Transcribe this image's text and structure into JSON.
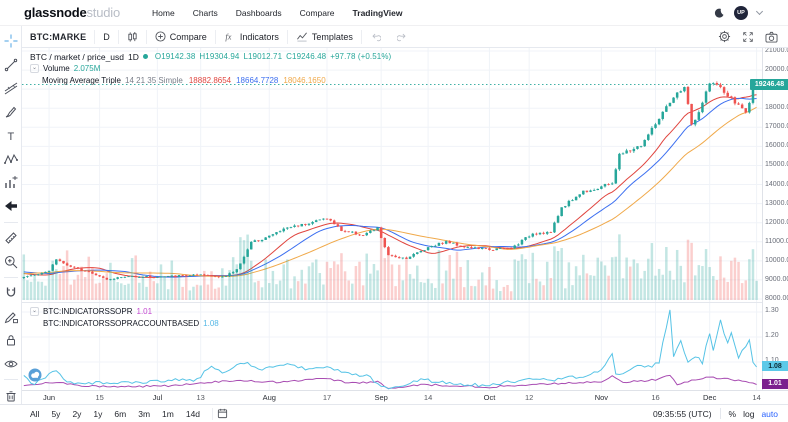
{
  "navbar": {
    "logo_primary": "glassnode",
    "logo_secondary": "studio",
    "items": [
      "Home",
      "Charts",
      "Dashboards",
      "Compare",
      "TradingView"
    ],
    "active_item": "TradingView",
    "avatar_initials": "UP"
  },
  "chart_toolbar": {
    "symbol": "BTC:MARKE",
    "interval": "D",
    "compare_label": "Compare",
    "indicators_label": "Indicators",
    "templates_label": "Templates"
  },
  "legend": {
    "series_title": "BTC / market / price_usd",
    "series_interval": "1D",
    "ohlc": {
      "o": "19142.38",
      "h": "19304.94",
      "l": "19012.71",
      "c": "19246.48",
      "change": "+97.78",
      "change_pct": "(+0.51%)"
    },
    "volume_label": "Volume",
    "volume_value": "2.075M",
    "ma_label": "Moving Average Triple",
    "ma_params": "14 21 35 Simple",
    "ma_values": [
      "18882.8654",
      "18664.7728",
      "18046.1650"
    ]
  },
  "left_toolbar": {
    "tools": [
      "crosshair",
      "trend-line",
      "fib-retracement",
      "brush",
      "text",
      "xabcd-pattern",
      "prediction-measurement",
      "arrow-marker",
      "measure-ruler",
      "zoom-in",
      "magnet",
      "drawing-mode",
      "lock-all",
      "hide-all",
      "remove-drawings"
    ],
    "dividers_after": [
      7,
      9,
      13
    ]
  },
  "price_axis": {
    "ticks": [
      "21000.00",
      "20000.00",
      "19000.00",
      "18000.00",
      "17000.00",
      "16000.00",
      "15000.00",
      "14000.00",
      "13000.00",
      "12000.00",
      "11000.00",
      "10000.00",
      "9000.00",
      "8000.00"
    ],
    "last_price": "19246.48"
  },
  "lower_panel": {
    "series": [
      {
        "label": "BTC:INDICATORSSOPR",
        "value": "1.01"
      },
      {
        "label": "BTC:INDICATORSSOPRACCOUNTBASED",
        "value": "1.08"
      }
    ],
    "ticks": [
      "1.30",
      "1.20",
      "1.10"
    ],
    "tags": [
      {
        "value": "1.08"
      },
      {
        "value": "1.01"
      }
    ]
  },
  "time_axis": {
    "labels": [
      [
        "Jun",
        7,
        "mo"
      ],
      [
        "15",
        21,
        "d"
      ],
      [
        "Jul",
        37,
        "mo"
      ],
      [
        "13",
        49,
        "d"
      ],
      [
        "Aug",
        68,
        "mo"
      ],
      [
        "17",
        84,
        "d"
      ],
      [
        "Sep",
        99,
        "mo"
      ],
      [
        "14",
        112,
        "d"
      ],
      [
        "Oct",
        129,
        "mo"
      ],
      [
        "12",
        140,
        "d"
      ],
      [
        "Nov",
        160,
        "mo"
      ],
      [
        "16",
        175,
        "d"
      ],
      [
        "Dec",
        190,
        "mo"
      ],
      [
        "14",
        203,
        "d"
      ]
    ]
  },
  "bottom_bar": {
    "ranges": [
      "All",
      "5y",
      "2y",
      "1y",
      "6m",
      "3m",
      "1m",
      "14d"
    ],
    "clock": "09:35:55 (UTC)",
    "scale_options": [
      "%",
      "log",
      "auto"
    ],
    "active_scale": "auto"
  },
  "colors": {
    "up": "#26a69a",
    "down": "#ef5350",
    "ohlc_text": "#26a69a",
    "volume_value": "#26a69a",
    "ma": [
      "#e0453f",
      "#3c6ff0",
      "#f0a94a"
    ],
    "sopr_line": "#a84cb2",
    "sopr_tag": "#7c218e",
    "sopr_value": "#c44ad0",
    "sopr_ab_line": "#56c3e6",
    "sopr_ab_tag": "#5cc9e8",
    "sopr_ab_value": "#56b8e6",
    "last_price_tag": "#26a69a",
    "grid": "#f0f3f8",
    "link_blue": "#2962ff"
  },
  "chart_data": {
    "type": "candlestick",
    "symbol_metric": "BTC / market / price_usd",
    "interval": "1D",
    "visible_range": {
      "start": "May 25 2020",
      "end": "Dec 14 2020 + right margin",
      "days": 205
    },
    "price_axis_range": [
      8000,
      21000
    ],
    "last_candle_ohlc": [
      19142.38,
      19304.94,
      19012.71,
      19246.48
    ],
    "price_anchors": [
      [
        -35,
        8750
      ],
      [
        -25,
        9350
      ],
      [
        -15,
        9650
      ],
      [
        -8,
        9400
      ],
      [
        -1,
        9150
      ],
      [
        0,
        9150
      ],
      [
        7,
        9500
      ],
      [
        9,
        10100
      ],
      [
        13,
        9650
      ],
      [
        18,
        9450
      ],
      [
        23,
        9050
      ],
      [
        30,
        9200
      ],
      [
        37,
        9150
      ],
      [
        47,
        9250
      ],
      [
        56,
        9180
      ],
      [
        59,
        9550
      ],
      [
        63,
        10950
      ],
      [
        68,
        11300
      ],
      [
        73,
        11750
      ],
      [
        77,
        11900
      ],
      [
        84,
        12250
      ],
      [
        88,
        11600
      ],
      [
        94,
        11350
      ],
      [
        98,
        11700
      ],
      [
        101,
        10250
      ],
      [
        106,
        10150
      ],
      [
        113,
        10800
      ],
      [
        117,
        11000
      ],
      [
        123,
        10700
      ],
      [
        129,
        10600
      ],
      [
        135,
        10650
      ],
      [
        141,
        11450
      ],
      [
        146,
        11500
      ],
      [
        149,
        12800
      ],
      [
        155,
        13650
      ],
      [
        159,
        13800
      ],
      [
        163,
        14100
      ],
      [
        165,
        15550
      ],
      [
        171,
        16050
      ],
      [
        177,
        17750
      ],
      [
        181,
        18750
      ],
      [
        183,
        19150
      ],
      [
        185,
        17150
      ],
      [
        187,
        17700
      ],
      [
        190,
        19400
      ],
      [
        192,
        19200
      ],
      [
        195,
        18650
      ],
      [
        200,
        17800
      ],
      [
        203,
        19246.48
      ]
    ],
    "moving_averages": {
      "windows": [
        14,
        21,
        35
      ],
      "method": "Simple",
      "last_values": [
        18882.8654,
        18664.7728,
        18046.165
      ]
    },
    "lower_pane": {
      "type": "line",
      "value_range_visible": [
        0.99,
        1.336
      ],
      "series": [
        {
          "name": "BTC:INDICATORSSOPR",
          "last": 1.01,
          "anchors": [
            [
              0,
              1.005
            ],
            [
              9,
              1.02
            ],
            [
              15,
              1.005
            ],
            [
              25,
              1.0
            ],
            [
              40,
              1.005
            ],
            [
              52,
              1.02
            ],
            [
              61,
              1.025
            ],
            [
              70,
              1.02
            ],
            [
              80,
              1.03
            ],
            [
              84,
              1.035
            ],
            [
              90,
              1.015
            ],
            [
              98,
              1.02
            ],
            [
              101,
              0.995
            ],
            [
              110,
              1.01
            ],
            [
              120,
              1.005
            ],
            [
              129,
              1.0
            ],
            [
              140,
              1.01
            ],
            [
              150,
              1.015
            ],
            [
              160,
              1.02
            ],
            [
              163,
              1.045
            ],
            [
              166,
              1.02
            ],
            [
              172,
              1.025
            ],
            [
              176,
              1.03
            ],
            [
              179,
              1.05
            ],
            [
              181,
              1.01
            ],
            [
              184,
              1.02
            ],
            [
              186,
              1.03
            ],
            [
              190,
              1.04
            ],
            [
              193,
              1.035
            ],
            [
              196,
              1.03
            ],
            [
              200,
              1.025
            ],
            [
              203,
              1.01
            ]
          ]
        },
        {
          "name": "BTC:INDICATORSSOPRACCOUNTBASED",
          "last": 1.08,
          "anchors": [
            [
              0,
              1.04
            ],
            [
              3,
              1.01
            ],
            [
              9,
              1.065
            ],
            [
              12,
              1.02
            ],
            [
              20,
              1.015
            ],
            [
              30,
              1.02
            ],
            [
              40,
              1.025
            ],
            [
              48,
              1.03
            ],
            [
              52,
              1.085
            ],
            [
              55,
              1.06
            ],
            [
              61,
              1.1
            ],
            [
              65,
              1.07
            ],
            [
              70,
              1.085
            ],
            [
              73,
              1.095
            ],
            [
              78,
              1.07
            ],
            [
              84,
              1.075
            ],
            [
              90,
              1.05
            ],
            [
              95,
              1.045
            ],
            [
              101,
              0.99
            ],
            [
              105,
              1.01
            ],
            [
              110,
              1.03
            ],
            [
              115,
              1.02
            ],
            [
              122,
              1.01
            ],
            [
              129,
              1.005
            ],
            [
              135,
              1.02
            ],
            [
              141,
              1.03
            ],
            [
              146,
              1.025
            ],
            [
              151,
              1.04
            ],
            [
              157,
              1.045
            ],
            [
              161,
              1.08
            ],
            [
              163,
              1.13
            ],
            [
              164,
              1.05
            ],
            [
              167,
              1.06
            ],
            [
              170,
              1.09
            ],
            [
              173,
              1.08
            ],
            [
              176,
              1.1
            ],
            [
              179,
              1.31
            ],
            [
              180,
              1.12
            ],
            [
              182,
              1.18
            ],
            [
              184,
              1.1
            ],
            [
              186,
              1.12
            ],
            [
              188,
              1.1
            ],
            [
              190,
              1.22
            ],
            [
              191,
              1.15
            ],
            [
              193,
              1.26
            ],
            [
              195,
              1.18
            ],
            [
              196,
              1.22
            ],
            [
              198,
              1.12
            ],
            [
              200,
              1.16
            ],
            [
              201,
              1.19
            ],
            [
              202,
              1.1
            ],
            [
              203,
              1.08
            ]
          ]
        }
      ]
    }
  }
}
